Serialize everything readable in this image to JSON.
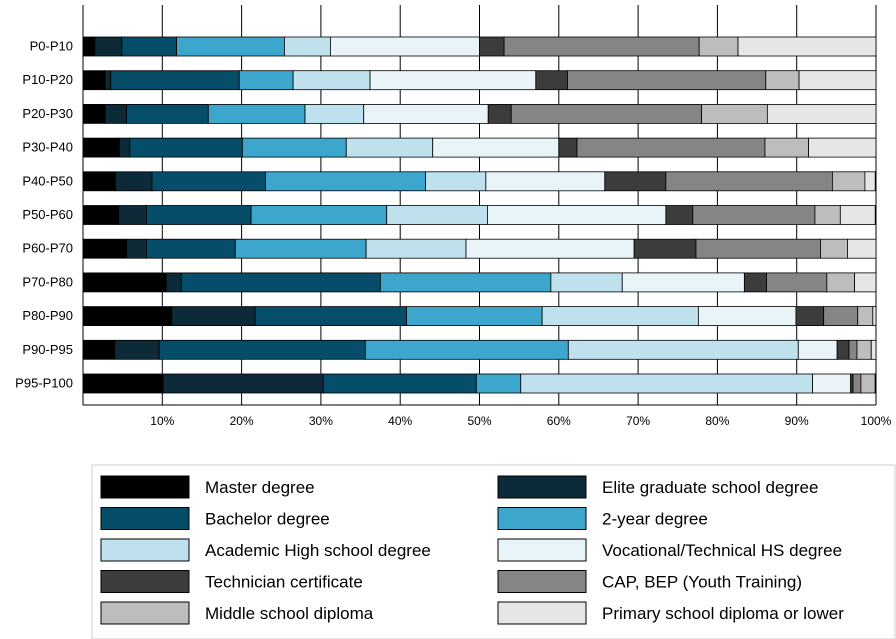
{
  "chart_data": {
    "type": "bar",
    "orientation": "horizontal",
    "stacked": true,
    "title": "",
    "xlabel": "",
    "ylabel": "",
    "xlim": [
      0,
      100
    ],
    "xticks": [
      "10%",
      "20%",
      "30%",
      "40%",
      "50%",
      "60%",
      "70%",
      "80%",
      "90%",
      "100%"
    ],
    "grid": "vertical",
    "legend_position": "bottom",
    "categories": [
      "P0-P10",
      "P10-P20",
      "P20-P30",
      "P30-P40",
      "P40-P50",
      "P50-P60",
      "P60-P70",
      "P70-P80",
      "P80-P90",
      "P90-P95",
      "P95-P100"
    ],
    "series": [
      {
        "name": "Master degree",
        "color": "#000000",
        "values": [
          1.5,
          2.8,
          2.8,
          4.6,
          4.1,
          4.5,
          5.5,
          10.5,
          11.2,
          4.0,
          10.1
        ]
      },
      {
        "name": "Elite graduate school degree",
        "color": "#0d2a38",
        "values": [
          3.4,
          0.7,
          2.7,
          1.3,
          4.6,
          3.5,
          2.5,
          1.9,
          10.5,
          5.6,
          20.2
        ]
      },
      {
        "name": "Bachelor degree",
        "color": "#064d69",
        "values": [
          6.9,
          16.2,
          10.3,
          14.2,
          14.3,
          13.2,
          11.2,
          25.1,
          19.1,
          26.0,
          19.3
        ]
      },
      {
        "name": "2-year degree",
        "color": "#3da6cc",
        "values": [
          13.6,
          6.8,
          12.2,
          13.1,
          20.2,
          17.1,
          16.5,
          21.5,
          17.1,
          25.6,
          5.6
        ]
      },
      {
        "name": "Academic High school degree",
        "color": "#bfe1ed",
        "values": [
          5.8,
          9.7,
          7.4,
          10.9,
          7.6,
          12.7,
          12.6,
          9.0,
          19.7,
          29.0,
          36.8
        ]
      },
      {
        "name": "Vocational/Technical HS degree",
        "color": "#e8f4f8",
        "values": [
          18.8,
          20.9,
          15.7,
          15.9,
          15.0,
          22.5,
          21.2,
          15.4,
          12.3,
          4.9,
          4.8
        ]
      },
      {
        "name": "Technician certificate",
        "color": "#3c3c3c",
        "values": [
          3.1,
          4.0,
          2.9,
          2.3,
          7.7,
          3.4,
          7.8,
          2.8,
          3.5,
          1.5,
          0.3
        ]
      },
      {
        "name": "CAP, BEP (Youth Training)",
        "color": "#858585",
        "values": [
          24.6,
          25.0,
          24.0,
          23.7,
          21.0,
          15.4,
          15.7,
          7.6,
          4.3,
          1.0,
          1.0
        ]
      },
      {
        "name": "Middle school diploma",
        "color": "#bdbdbd",
        "values": [
          4.9,
          4.2,
          8.3,
          5.5,
          4.1,
          3.2,
          3.4,
          3.5,
          1.9,
          1.8,
          1.8
        ]
      },
      {
        "name": "Primary school diploma or lower",
        "color": "#e6e6e6",
        "values": [
          17.4,
          9.7,
          13.7,
          8.5,
          1.3,
          4.4,
          3.6,
          2.7,
          0.4,
          0.6,
          0.1
        ]
      }
    ]
  }
}
